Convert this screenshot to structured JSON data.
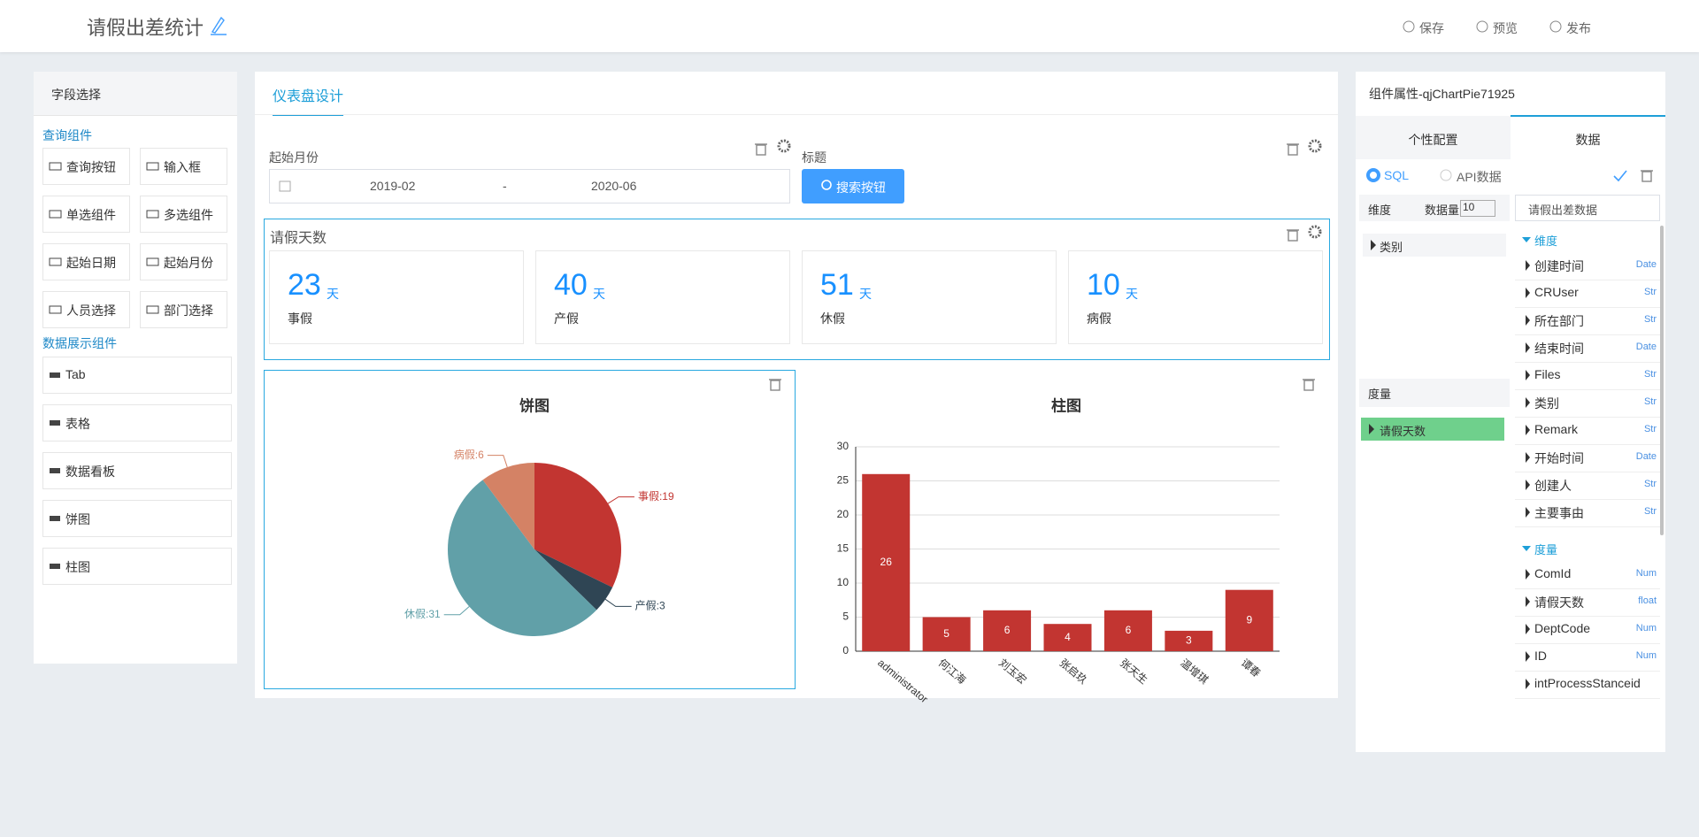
{
  "header": {
    "title": "请假出差统计",
    "actions": [
      "保存",
      "预览",
      "发布"
    ]
  },
  "field_panel": {
    "title": "字段选择",
    "query_section": "查询组件",
    "query_items": [
      "查询按钮",
      "输入框",
      "单选组件",
      "多选组件",
      "起始日期",
      "起始月份",
      "人员选择",
      "部门选择"
    ],
    "display_section": "数据展示组件",
    "display_items": [
      "Tab",
      "表格",
      "数据看板",
      "饼图",
      "柱图"
    ]
  },
  "designer": {
    "tab": "仪表盘设计",
    "filter": {
      "month_label": "起始月份",
      "start": "2019-02",
      "separator": "-",
      "end": "2020-06",
      "title_label": "标题",
      "button": "搜索按钮"
    },
    "kpi": {
      "title": "请假天数",
      "cards": [
        {
          "value": 23,
          "unit": "天",
          "label": "事假"
        },
        {
          "value": 40,
          "unit": "天",
          "label": "产假"
        },
        {
          "value": 51,
          "unit": "天",
          "label": "休假"
        },
        {
          "value": 10,
          "unit": "天",
          "label": "病假"
        }
      ]
    }
  },
  "chart_data": [
    {
      "type": "pie",
      "title": "饼图",
      "categories": [
        "事假",
        "产假",
        "休假",
        "病假"
      ],
      "values": [
        19,
        3,
        31,
        6
      ],
      "value_labels": [
        "事假:19",
        "产假:3",
        "休假:31",
        "病假:6"
      ],
      "colors": [
        "#c23531",
        "#2f4554",
        "#61a0a8",
        "#d48265"
      ]
    },
    {
      "type": "bar",
      "title": "柱图",
      "categories": [
        "administrator",
        "何江海",
        "刘玉宏",
        "张启玖",
        "张天生",
        "温增琪",
        "谭春"
      ],
      "values": [
        26,
        5,
        6,
        4,
        6,
        3,
        9
      ],
      "color": "#c23531",
      "ylim": [
        0,
        30
      ],
      "yticks": [
        0,
        5,
        10,
        15,
        20,
        25,
        30
      ],
      "grid": true
    }
  ],
  "properties": {
    "title": "组件属性-qjChartPie71925",
    "tabs": [
      "个性配置",
      "数据"
    ],
    "sources": [
      "SQL",
      "API数据"
    ],
    "dimension_label": "维度",
    "count_label": "数据量",
    "count": 10,
    "dataset": "请假出差数据",
    "dimensions": [
      "类别"
    ],
    "measure_label": "度量",
    "measures": [
      "请假天数"
    ],
    "tree": [
      {
        "group": "维度",
        "fields": [
          {
            "name": "创建时间",
            "type": "Date"
          },
          {
            "name": "CRUser",
            "type": "Str"
          },
          {
            "name": "所在部门",
            "type": "Str"
          },
          {
            "name": "结束时间",
            "type": "Date"
          },
          {
            "name": "Files",
            "type": "Str"
          },
          {
            "name": "类别",
            "type": "Str"
          },
          {
            "name": "Remark",
            "type": "Str"
          },
          {
            "name": "开始时间",
            "type": "Date"
          },
          {
            "name": "创建人",
            "type": "Str"
          },
          {
            "name": "主要事由",
            "type": "Str"
          }
        ]
      },
      {
        "group": "度量",
        "fields": [
          {
            "name": "ComId",
            "type": "Num"
          },
          {
            "name": "请假天数",
            "type": "float"
          },
          {
            "name": "DeptCode",
            "type": "Num"
          },
          {
            "name": "ID",
            "type": "Num"
          },
          {
            "name": "intProcessStanceid"
          }
        ]
      }
    ]
  }
}
